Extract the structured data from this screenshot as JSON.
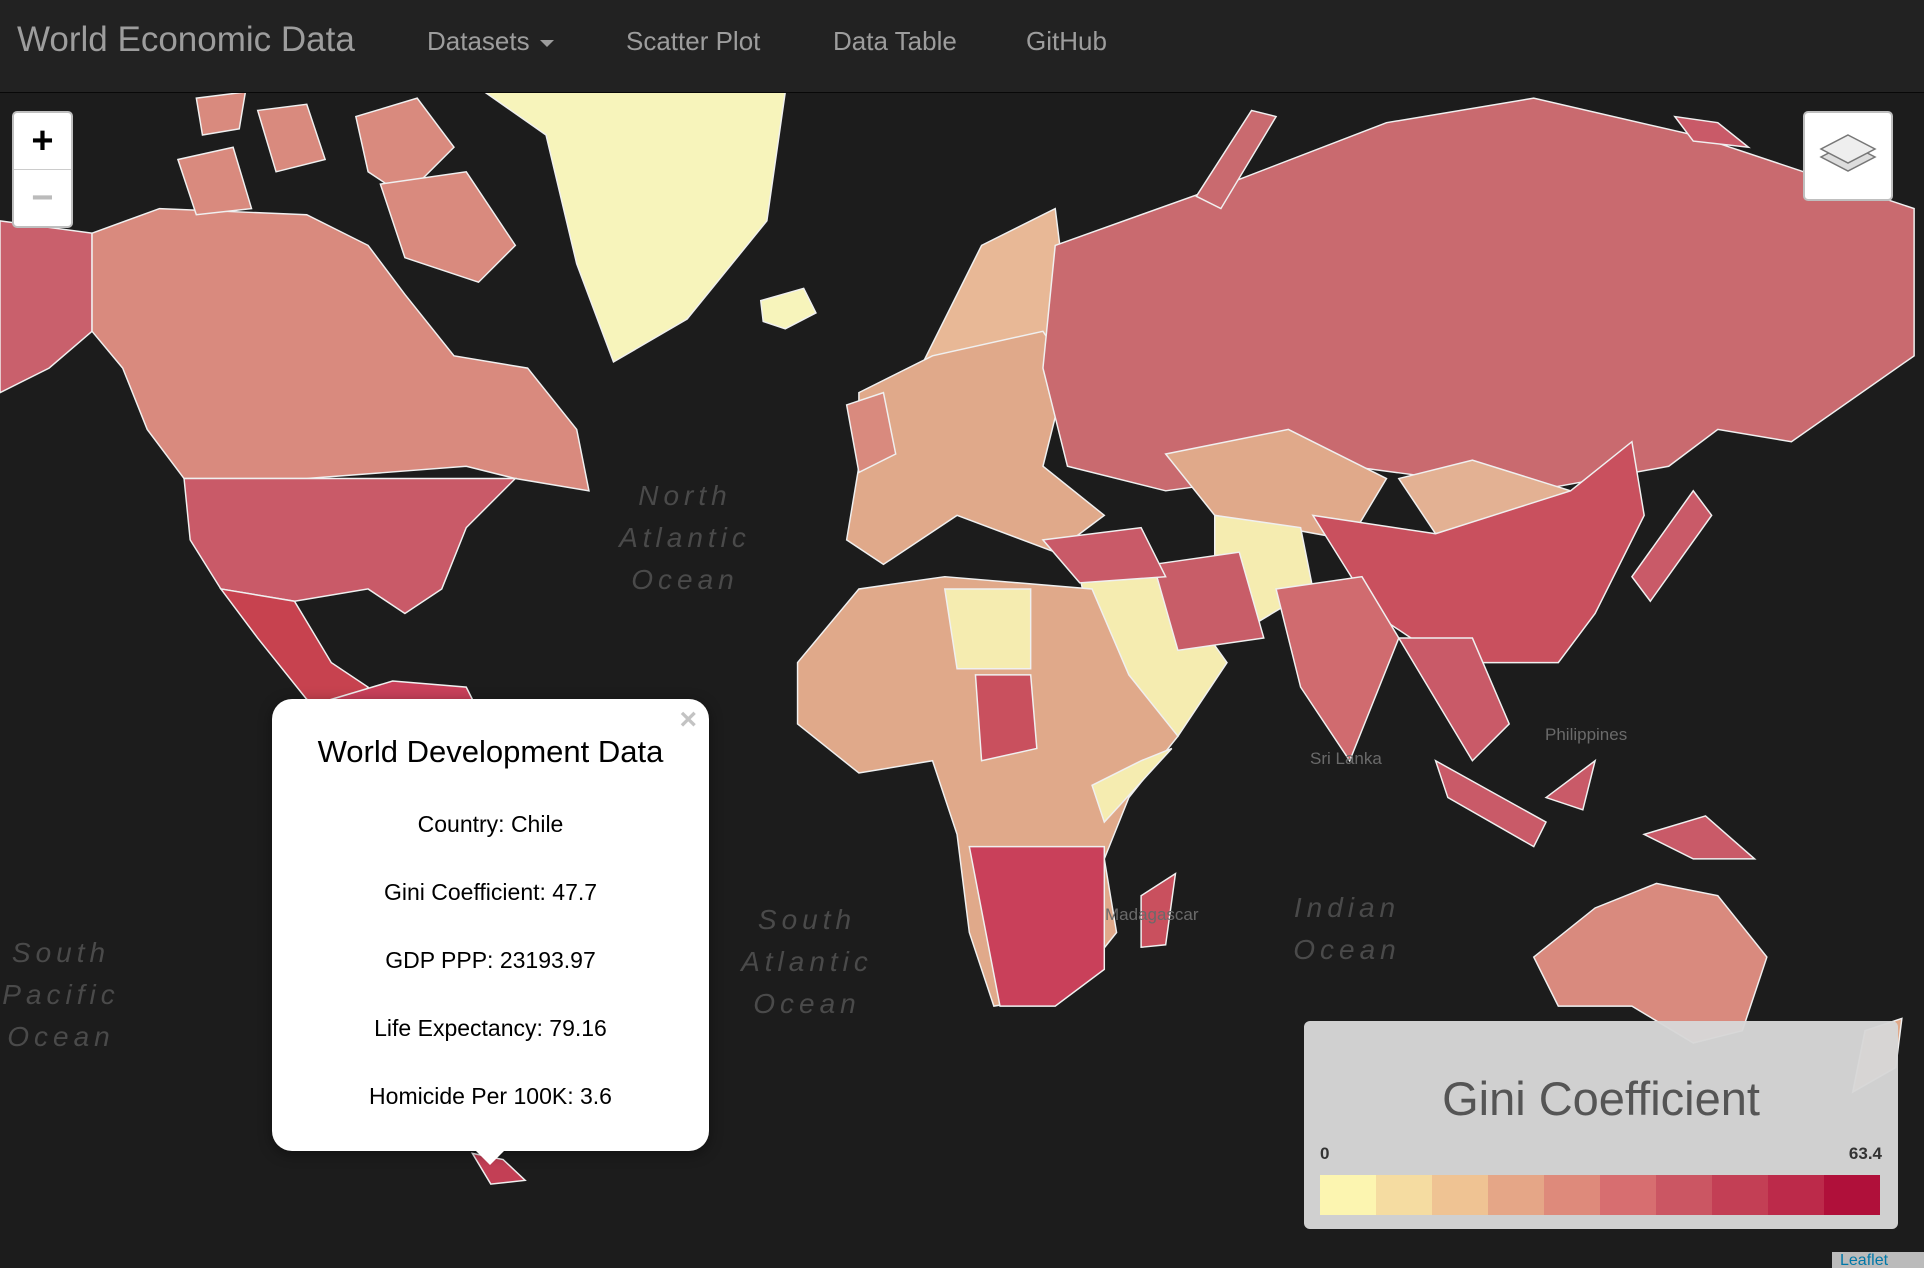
{
  "navbar": {
    "brand": "World Economic Data",
    "items": [
      "Datasets",
      "Scatter Plot",
      "Data Table",
      "GitHub"
    ]
  },
  "map": {
    "zoom_in": "+",
    "zoom_out": "−",
    "ocean_labels": [
      {
        "lines": [
          "North",
          "Atlantic",
          "Ocean"
        ]
      },
      {
        "lines": [
          "South",
          "Atlantic",
          "Ocean"
        ]
      },
      {
        "lines": [
          "Indian",
          "Ocean"
        ]
      },
      {
        "lines": [
          "South",
          "Pacific",
          "Ocean"
        ]
      }
    ],
    "place_labels": [
      "Madagascar",
      "Sri Lanka",
      "Philippines"
    ],
    "attribution": "Leaflet"
  },
  "popup": {
    "close": "×",
    "title": "World Development Data",
    "lines": [
      "Country: Chile",
      "Gini Coefficient: 47.7",
      "GDP PPP: 23193.97",
      "Life Expectancy: 79.16",
      "Homicide Per 100K: 3.6"
    ]
  },
  "legend": {
    "title": "Gini Coefficient",
    "min": "0",
    "max": "63.4",
    "colors": [
      "#fcf5b0",
      "#f5dca1",
      "#efc393",
      "#e5a687",
      "#de8a7b",
      "#d76e70",
      "#cb5663",
      "#c33f55",
      "#bc2a4a",
      "#b0103a"
    ]
  }
}
